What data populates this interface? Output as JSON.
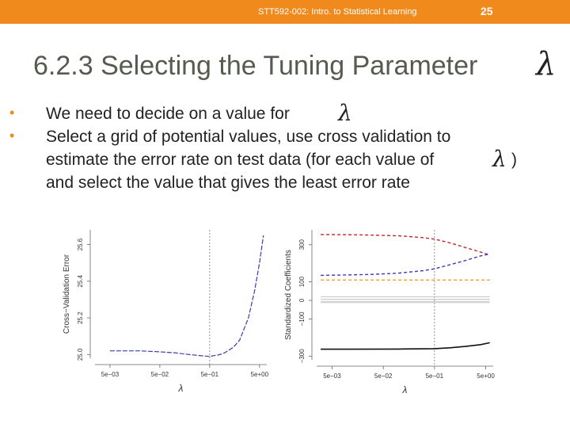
{
  "header": {
    "course": "STT592-002: Intro. to Statistical Learning",
    "page_number": "25",
    "bar_color": "#f08a1d"
  },
  "slide": {
    "title": "6.2.3 Selecting the Tuning Parameter",
    "lambda_symbol": "λ",
    "bullets": [
      {
        "text": "We need to decide on a value for"
      },
      {
        "text": "Select a grid of potential values, use cross validation to"
      },
      {
        "text": "estimate the error rate on test data (for each value of"
      },
      {
        "text": "and select the value that gives the least error rate"
      }
    ],
    "close_paren": ")"
  },
  "chart_data": [
    {
      "type": "line",
      "xlabel": "λ",
      "ylabel": "Cross−Validation Error",
      "x_scale": "log",
      "xlim": [
        0.0025,
        7
      ],
      "ylim": [
        24.98,
        25.68
      ],
      "x_ticks": [
        "5e−03",
        "5e−02",
        "5e−01",
        "5e+00"
      ],
      "x_tick_values": [
        0.005,
        0.05,
        0.5,
        5
      ],
      "y_ticks": [
        "25.0",
        "25.2",
        "25.4",
        "25.6"
      ],
      "y_tick_values": [
        25.0,
        25.2,
        25.4,
        25.6
      ],
      "vline_x": 0.5,
      "series": [
        {
          "color": "#3b3bb0",
          "x": [
            0.005,
            0.01,
            0.02,
            0.05,
            0.1,
            0.2,
            0.3,
            0.5,
            0.8,
            1.0,
            1.5,
            2.0,
            3.0,
            4.0,
            5.0,
            6.0
          ],
          "y": [
            25.02,
            25.02,
            25.02,
            25.015,
            25.01,
            25.0,
            24.995,
            24.99,
            25.0,
            25.01,
            25.04,
            25.08,
            25.2,
            25.35,
            25.5,
            25.65
          ]
        }
      ]
    },
    {
      "type": "line",
      "xlabel": "λ",
      "ylabel": "Standardized Coefficients",
      "x_scale": "log",
      "xlim": [
        0.0025,
        7
      ],
      "ylim": [
        -320,
        380
      ],
      "x_ticks": [
        "5e−03",
        "5e−02",
        "5e−01",
        "5e+00"
      ],
      "x_tick_values": [
        0.005,
        0.05,
        0.5,
        5
      ],
      "y_ticks": [
        "−300",
        "−100",
        "0",
        "100",
        "300"
      ],
      "y_tick_values": [
        -300,
        -100,
        0,
        100,
        300
      ],
      "vline_x": 0.5,
      "series": [
        {
          "color": "#c0262b",
          "x": [
            0.003,
            0.01,
            0.03,
            0.1,
            0.3,
            0.5,
            1,
            2,
            4,
            6
          ],
          "y": [
            355,
            354,
            352,
            348,
            338,
            330,
            310,
            285,
            260,
            245
          ]
        },
        {
          "color": "#3a3ab5",
          "x": [
            0.003,
            0.01,
            0.03,
            0.1,
            0.3,
            0.5,
            1,
            2,
            4,
            6
          ],
          "y": [
            135,
            137,
            140,
            147,
            160,
            170,
            192,
            215,
            240,
            250
          ]
        },
        {
          "color": "#f0a020",
          "x": [
            0.003,
            0.1,
            0.5,
            2,
            6
          ],
          "y": [
            110,
            110,
            110,
            110,
            110
          ]
        },
        {
          "color": "#bbbbbb",
          "x": [
            0.003,
            0.1,
            0.5,
            2,
            6
          ],
          "y": [
            20,
            20,
            20,
            20,
            20
          ]
        },
        {
          "color": "#bbbbbb",
          "x": [
            0.003,
            0.1,
            0.5,
            2,
            6
          ],
          "y": [
            6,
            6,
            6,
            6,
            6
          ]
        },
        {
          "color": "#bbbbbb",
          "x": [
            0.003,
            0.1,
            0.5,
            2,
            6
          ],
          "y": [
            -5,
            -5,
            -5,
            -5,
            -5
          ]
        },
        {
          "color": "#bbbbbb",
          "x": [
            0.003,
            0.1,
            0.5,
            2,
            6
          ],
          "y": [
            -12,
            -12,
            -12,
            -12,
            -12
          ]
        },
        {
          "color": "#111111",
          "x": [
            0.003,
            0.01,
            0.1,
            0.5,
            1,
            2,
            4,
            6
          ],
          "y": [
            -263,
            -263,
            -262,
            -260,
            -255,
            -248,
            -238,
            -228
          ]
        }
      ]
    }
  ]
}
